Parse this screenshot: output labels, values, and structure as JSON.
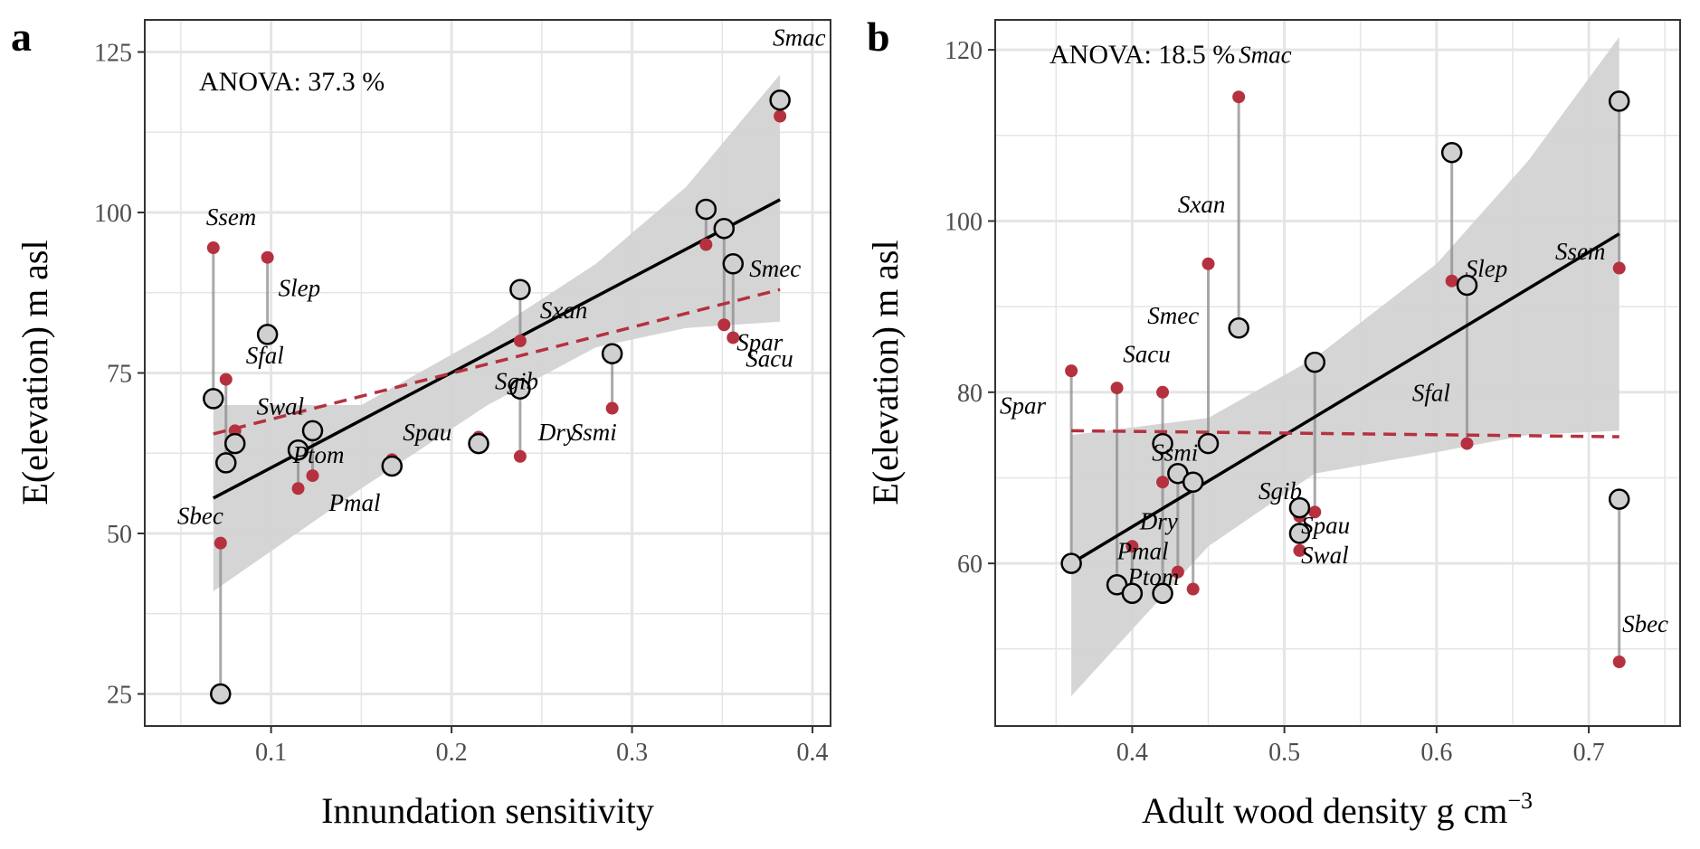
{
  "colors": {
    "observed_point": "#d0d0d0",
    "predicted_point": "#b5313f",
    "observed_line": "#000000",
    "predicted_line": "#b5313f",
    "ribbon": "#d3d3d3",
    "connector": "#8c8c8c",
    "grid": "#e5e5e5"
  },
  "chart_data": [
    {
      "panel": "a",
      "type": "scatter",
      "annotation": "ANOVA: 37.3 %",
      "xlabel": "Innundation sensitivity",
      "ylabel": "E(elevation) m asl",
      "xlim": [
        0.03,
        0.41
      ],
      "ylim": [
        20,
        130
      ],
      "xticks": [
        0.1,
        0.2,
        0.3,
        0.4
      ],
      "xtick_labels": [
        "0.1",
        "0.2",
        "0.3",
        "0.4"
      ],
      "yticks": [
        25,
        50,
        75,
        100,
        125
      ],
      "ytick_labels": [
        "25",
        "50",
        "75",
        "100",
        "125"
      ],
      "grid": true,
      "series": [
        {
          "name": "observed",
          "points": [
            {
              "x": 0.068,
              "y": 71
            },
            {
              "x": 0.072,
              "y": 25
            },
            {
              "x": 0.075,
              "y": 61
            },
            {
              "x": 0.08,
              "y": 64
            },
            {
              "x": 0.098,
              "y": 81
            },
            {
              "x": 0.115,
              "y": 63
            },
            {
              "x": 0.123,
              "y": 66
            },
            {
              "x": 0.167,
              "y": 60.5
            },
            {
              "x": 0.215,
              "y": 64
            },
            {
              "x": 0.238,
              "y": 88
            },
            {
              "x": 0.238,
              "y": 72.5
            },
            {
              "x": 0.289,
              "y": 78
            },
            {
              "x": 0.341,
              "y": 100.5
            },
            {
              "x": 0.351,
              "y": 97.5
            },
            {
              "x": 0.356,
              "y": 92
            },
            {
              "x": 0.382,
              "y": 117.5
            }
          ]
        },
        {
          "name": "predicted",
          "points": [
            {
              "x": 0.068,
              "y": 94.5
            },
            {
              "x": 0.072,
              "y": 48.5
            },
            {
              "x": 0.075,
              "y": 74
            },
            {
              "x": 0.08,
              "y": 66
            },
            {
              "x": 0.098,
              "y": 93
            },
            {
              "x": 0.115,
              "y": 57
            },
            {
              "x": 0.123,
              "y": 59
            },
            {
              "x": 0.167,
              "y": 61.5
            },
            {
              "x": 0.215,
              "y": 65
            },
            {
              "x": 0.238,
              "y": 80
            },
            {
              "x": 0.238,
              "y": 62
            },
            {
              "x": 0.289,
              "y": 69.5
            },
            {
              "x": 0.341,
              "y": 95
            },
            {
              "x": 0.351,
              "y": 82.5
            },
            {
              "x": 0.356,
              "y": 80.5
            },
            {
              "x": 0.382,
              "y": 115
            }
          ]
        }
      ],
      "fit_observed": {
        "x": [
          0.068,
          0.382
        ],
        "y": [
          55.5,
          102
        ]
      },
      "fit_predicted": {
        "x": [
          0.068,
          0.382
        ],
        "y": [
          65.5,
          88
        ]
      },
      "ribbon": {
        "x": [
          0.068,
          0.15,
          0.22,
          0.28,
          0.33,
          0.382
        ],
        "lower": [
          41,
          57,
          70,
          79,
          82,
          83
        ],
        "upper": [
          70,
          70,
          81,
          92,
          104,
          121.5
        ]
      },
      "labels": [
        {
          "text": "Smac",
          "x": 0.378,
          "y": 126
        },
        {
          "text": "Ssem",
          "x": 0.064,
          "y": 98
        },
        {
          "text": "Slep",
          "x": 0.104,
          "y": 87
        },
        {
          "text": "Sfal",
          "x": 0.086,
          "y": 76.5
        },
        {
          "text": "Swal",
          "x": 0.092,
          "y": 68.5
        },
        {
          "text": "Ptom",
          "x": 0.112,
          "y": 61
        },
        {
          "text": "Pmal",
          "x": 0.132,
          "y": 53.5
        },
        {
          "text": "Sbec",
          "x": 0.048,
          "y": 51.5
        },
        {
          "text": "Spau",
          "x": 0.173,
          "y": 64.5
        },
        {
          "text": "Sgib",
          "x": 0.224,
          "y": 72.5
        },
        {
          "text": "Dry",
          "x": 0.248,
          "y": 64.5
        },
        {
          "text": "Ssmi",
          "x": 0.266,
          "y": 64.5
        },
        {
          "text": "Sxan",
          "x": 0.249,
          "y": 83.5
        },
        {
          "text": "Smec",
          "x": 0.365,
          "y": 90
        },
        {
          "text": "Spar",
          "x": 0.358,
          "y": 78.5
        },
        {
          "text": "Sacu",
          "x": 0.363,
          "y": 76
        }
      ]
    },
    {
      "panel": "b",
      "type": "scatter",
      "annotation": "ANOVA: 18.5 %",
      "xlabel": "Adult wood density g cm",
      "xlabel_superscript": "−3",
      "ylabel": "E(elevation) m asl",
      "xlim": [
        0.31,
        0.76
      ],
      "ylim": [
        41,
        123.5
      ],
      "xticks": [
        0.4,
        0.5,
        0.6,
        0.7
      ],
      "xtick_labels": [
        "0.4",
        "0.5",
        "0.6",
        "0.7"
      ],
      "yticks": [
        60,
        80,
        100,
        120
      ],
      "ytick_labels": [
        "60",
        "80",
        "100",
        "120"
      ],
      "grid": true,
      "series": [
        {
          "name": "observed",
          "points": [
            {
              "x": 0.36,
              "y": 60
            },
            {
              "x": 0.39,
              "y": 57.5
            },
            {
              "x": 0.4,
              "y": 56.5
            },
            {
              "x": 0.42,
              "y": 56.5
            },
            {
              "x": 0.42,
              "y": 74
            },
            {
              "x": 0.43,
              "y": 70.5
            },
            {
              "x": 0.44,
              "y": 69.5
            },
            {
              "x": 0.45,
              "y": 74
            },
            {
              "x": 0.47,
              "y": 87.5
            },
            {
              "x": 0.51,
              "y": 66.5
            },
            {
              "x": 0.51,
              "y": 63.5
            },
            {
              "x": 0.52,
              "y": 83.5
            },
            {
              "x": 0.61,
              "y": 108
            },
            {
              "x": 0.62,
              "y": 92.5
            },
            {
              "x": 0.72,
              "y": 114
            },
            {
              "x": 0.72,
              "y": 67.5
            }
          ]
        },
        {
          "name": "predicted",
          "points": [
            {
              "x": 0.36,
              "y": 82.5
            },
            {
              "x": 0.39,
              "y": 80.5
            },
            {
              "x": 0.4,
              "y": 62
            },
            {
              "x": 0.42,
              "y": 80
            },
            {
              "x": 0.42,
              "y": 69.5
            },
            {
              "x": 0.43,
              "y": 59
            },
            {
              "x": 0.44,
              "y": 57
            },
            {
              "x": 0.45,
              "y": 95
            },
            {
              "x": 0.47,
              "y": 114.5
            },
            {
              "x": 0.51,
              "y": 65.5
            },
            {
              "x": 0.51,
              "y": 61.5
            },
            {
              "x": 0.52,
              "y": 66
            },
            {
              "x": 0.61,
              "y": 93
            },
            {
              "x": 0.62,
              "y": 74
            },
            {
              "x": 0.72,
              "y": 94.5
            },
            {
              "x": 0.72,
              "y": 48.5
            }
          ]
        }
      ],
      "connectors": [
        {
          "x": 0.36,
          "y1": 60,
          "y2": 82.5
        },
        {
          "x": 0.39,
          "y1": 57.5,
          "y2": 80.5
        },
        {
          "x": 0.4,
          "y1": 56.5,
          "y2": 62
        },
        {
          "x": 0.42,
          "y1": 56.5,
          "y2": 80
        },
        {
          "x": 0.43,
          "y1": 70.5,
          "y2": 59
        },
        {
          "x": 0.44,
          "y1": 69.5,
          "y2": 57
        },
        {
          "x": 0.45,
          "y1": 74,
          "y2": 95
        },
        {
          "x": 0.47,
          "y1": 87.5,
          "y2": 114.5
        },
        {
          "x": 0.51,
          "y1": 63.5,
          "y2": 65.5
        },
        {
          "x": 0.52,
          "y1": 83.5,
          "y2": 66
        },
        {
          "x": 0.61,
          "y1": 108,
          "y2": 93
        },
        {
          "x": 0.62,
          "y1": 92.5,
          "y2": 74
        },
        {
          "x": 0.72,
          "y1": 114,
          "y2": 94.5
        },
        {
          "x": 0.72,
          "y1": 67.5,
          "y2": 48.5
        }
      ],
      "fit_observed": {
        "x": [
          0.36,
          0.72
        ],
        "y": [
          60,
          98.5
        ]
      },
      "fit_predicted": {
        "x": [
          0.36,
          0.72
        ],
        "y": [
          75.5,
          74.8
        ]
      },
      "ribbon": {
        "x": [
          0.36,
          0.45,
          0.52,
          0.6,
          0.66,
          0.72
        ],
        "lower": [
          44.5,
          62,
          70.5,
          73,
          75,
          75.5
        ],
        "upper": [
          75,
          77,
          84,
          95,
          107,
          121.5
        ]
      },
      "labels": [
        {
          "text": "Smac",
          "x": 0.47,
          "y": 118.5
        },
        {
          "text": "Sxan",
          "x": 0.43,
          "y": 101
        },
        {
          "text": "Smec",
          "x": 0.41,
          "y": 88
        },
        {
          "text": "Sacu",
          "x": 0.394,
          "y": 83.5
        },
        {
          "text": "Spar",
          "x": 0.313,
          "y": 77.5
        },
        {
          "text": "Ssmi",
          "x": 0.413,
          "y": 72
        },
        {
          "text": "Dry",
          "x": 0.405,
          "y": 64
        },
        {
          "text": "Pmal",
          "x": 0.39,
          "y": 60.5
        },
        {
          "text": "Ptom",
          "x": 0.397,
          "y": 57.5
        },
        {
          "text": "Sgib",
          "x": 0.483,
          "y": 67.5
        },
        {
          "text": "Spau",
          "x": 0.511,
          "y": 63.5
        },
        {
          "text": "Swal",
          "x": 0.511,
          "y": 60
        },
        {
          "text": "Sfal",
          "x": 0.584,
          "y": 79
        },
        {
          "text": "Slep",
          "x": 0.619,
          "y": 93.5
        },
        {
          "text": "Ssem",
          "x": 0.678,
          "y": 95.5
        },
        {
          "text": "Sbec",
          "x": 0.722,
          "y": 52
        }
      ]
    }
  ]
}
